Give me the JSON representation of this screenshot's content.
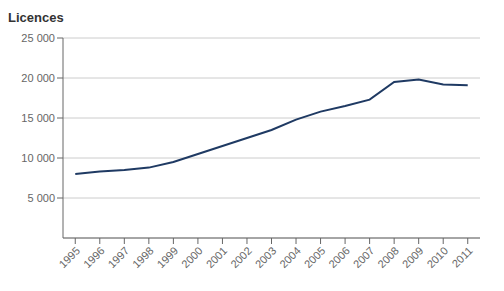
{
  "chart_data": {
    "type": "line",
    "y_label": "Licences",
    "x": [
      1995,
      1996,
      1997,
      1998,
      1999,
      2000,
      2001,
      2002,
      2003,
      2004,
      2005,
      2006,
      2007,
      2008,
      2009,
      2010,
      2011
    ],
    "values": [
      8000,
      8300,
      8500,
      8800,
      9500,
      10500,
      11500,
      12500,
      13500,
      14800,
      15800,
      16500,
      17300,
      19500,
      19800,
      19200,
      19100
    ],
    "color": "#1f3a63",
    "xlim": [
      1994.5,
      2011.5
    ],
    "xticks": [
      1995,
      1996,
      1997,
      1998,
      1999,
      2000,
      2001,
      2002,
      2003,
      2004,
      2005,
      2006,
      2007,
      2008,
      2009,
      2010,
      2011
    ],
    "ylim": [
      0,
      25000
    ],
    "yticks": [
      {
        "value": 5000,
        "label": "5 000"
      },
      {
        "value": 10000,
        "label": "10 000"
      },
      {
        "value": 15000,
        "label": "15 000"
      },
      {
        "value": 20000,
        "label": "20 000"
      },
      {
        "value": 25000,
        "label": "25 000"
      }
    ],
    "grid": true
  }
}
